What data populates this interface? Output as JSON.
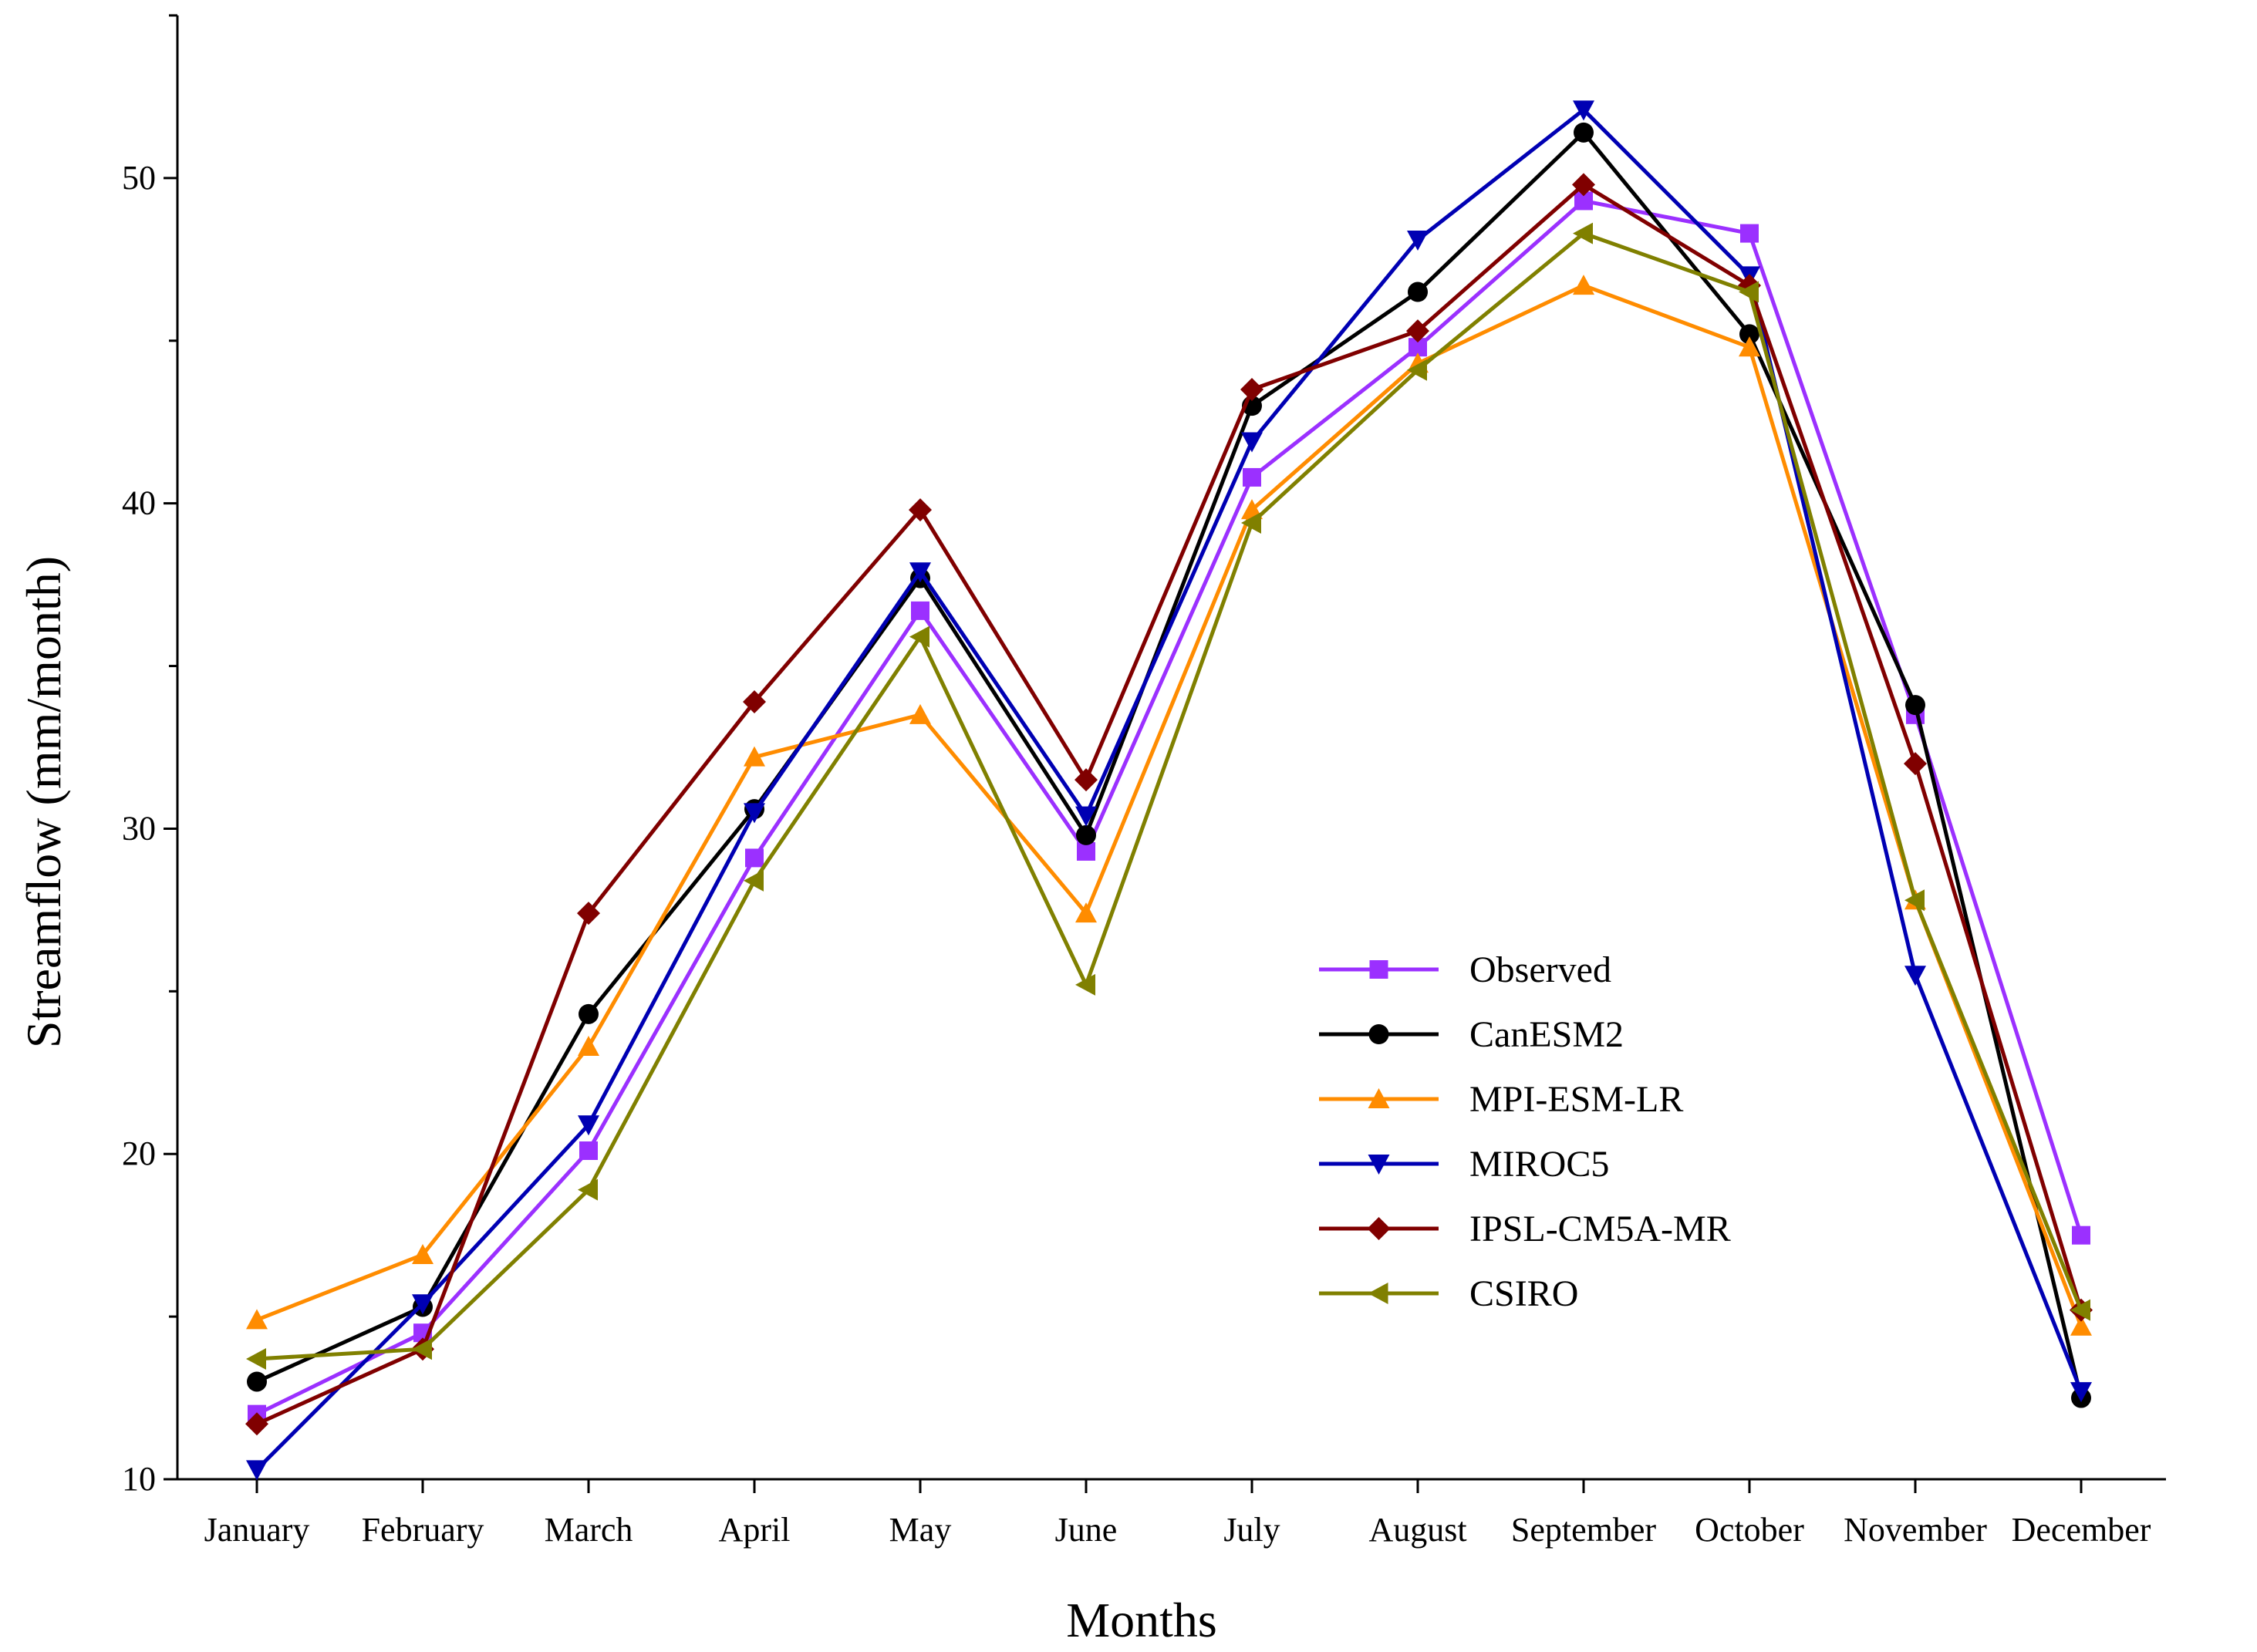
{
  "chart_data": {
    "type": "line",
    "title": "",
    "xlabel": "Months",
    "ylabel": "Streamflow (mm/month)",
    "categories": [
      "January",
      "February",
      "March",
      "April",
      "May",
      "June",
      "July",
      "August",
      "September",
      "October",
      "November",
      "December"
    ],
    "ylim": [
      10,
      55
    ],
    "yticks": [
      10,
      20,
      30,
      40,
      50
    ],
    "legend_position": "lower-right",
    "series": [
      {
        "name": "Observed",
        "color": "#9B30FF",
        "marker": "square",
        "values": [
          12.0,
          14.5,
          20.1,
          29.1,
          36.7,
          29.3,
          40.8,
          44.8,
          49.3,
          48.3,
          33.5,
          17.5
        ]
      },
      {
        "name": "CanESM2",
        "color": "#000000",
        "marker": "circle",
        "values": [
          13.0,
          15.3,
          24.3,
          30.6,
          37.7,
          29.8,
          43.0,
          46.5,
          51.4,
          45.2,
          33.8,
          12.5
        ]
      },
      {
        "name": "MPI-ESM-LR",
        "color": "#FF8C00",
        "marker": "triangle-up",
        "values": [
          14.9,
          16.9,
          23.3,
          32.2,
          33.5,
          27.4,
          39.8,
          44.3,
          46.7,
          44.8,
          27.8,
          14.7
        ]
      },
      {
        "name": "MIROC5",
        "color": "#0000B3",
        "marker": "triangle-down",
        "values": [
          10.3,
          15.4,
          20.9,
          30.5,
          37.9,
          30.4,
          41.9,
          48.1,
          52.1,
          47.0,
          25.5,
          12.7
        ]
      },
      {
        "name": "IPSL-CM5A-MR",
        "color": "#800000",
        "marker": "diamond",
        "values": [
          11.7,
          14.0,
          27.4,
          33.9,
          39.8,
          31.5,
          43.5,
          45.3,
          49.8,
          46.7,
          32.0,
          15.2
        ]
      },
      {
        "name": "CSIRO",
        "color": "#808000",
        "marker": "triangle-left",
        "values": [
          13.7,
          14.0,
          18.9,
          28.4,
          35.9,
          25.2,
          39.4,
          44.1,
          48.3,
          46.5,
          27.8,
          15.2
        ]
      }
    ]
  }
}
